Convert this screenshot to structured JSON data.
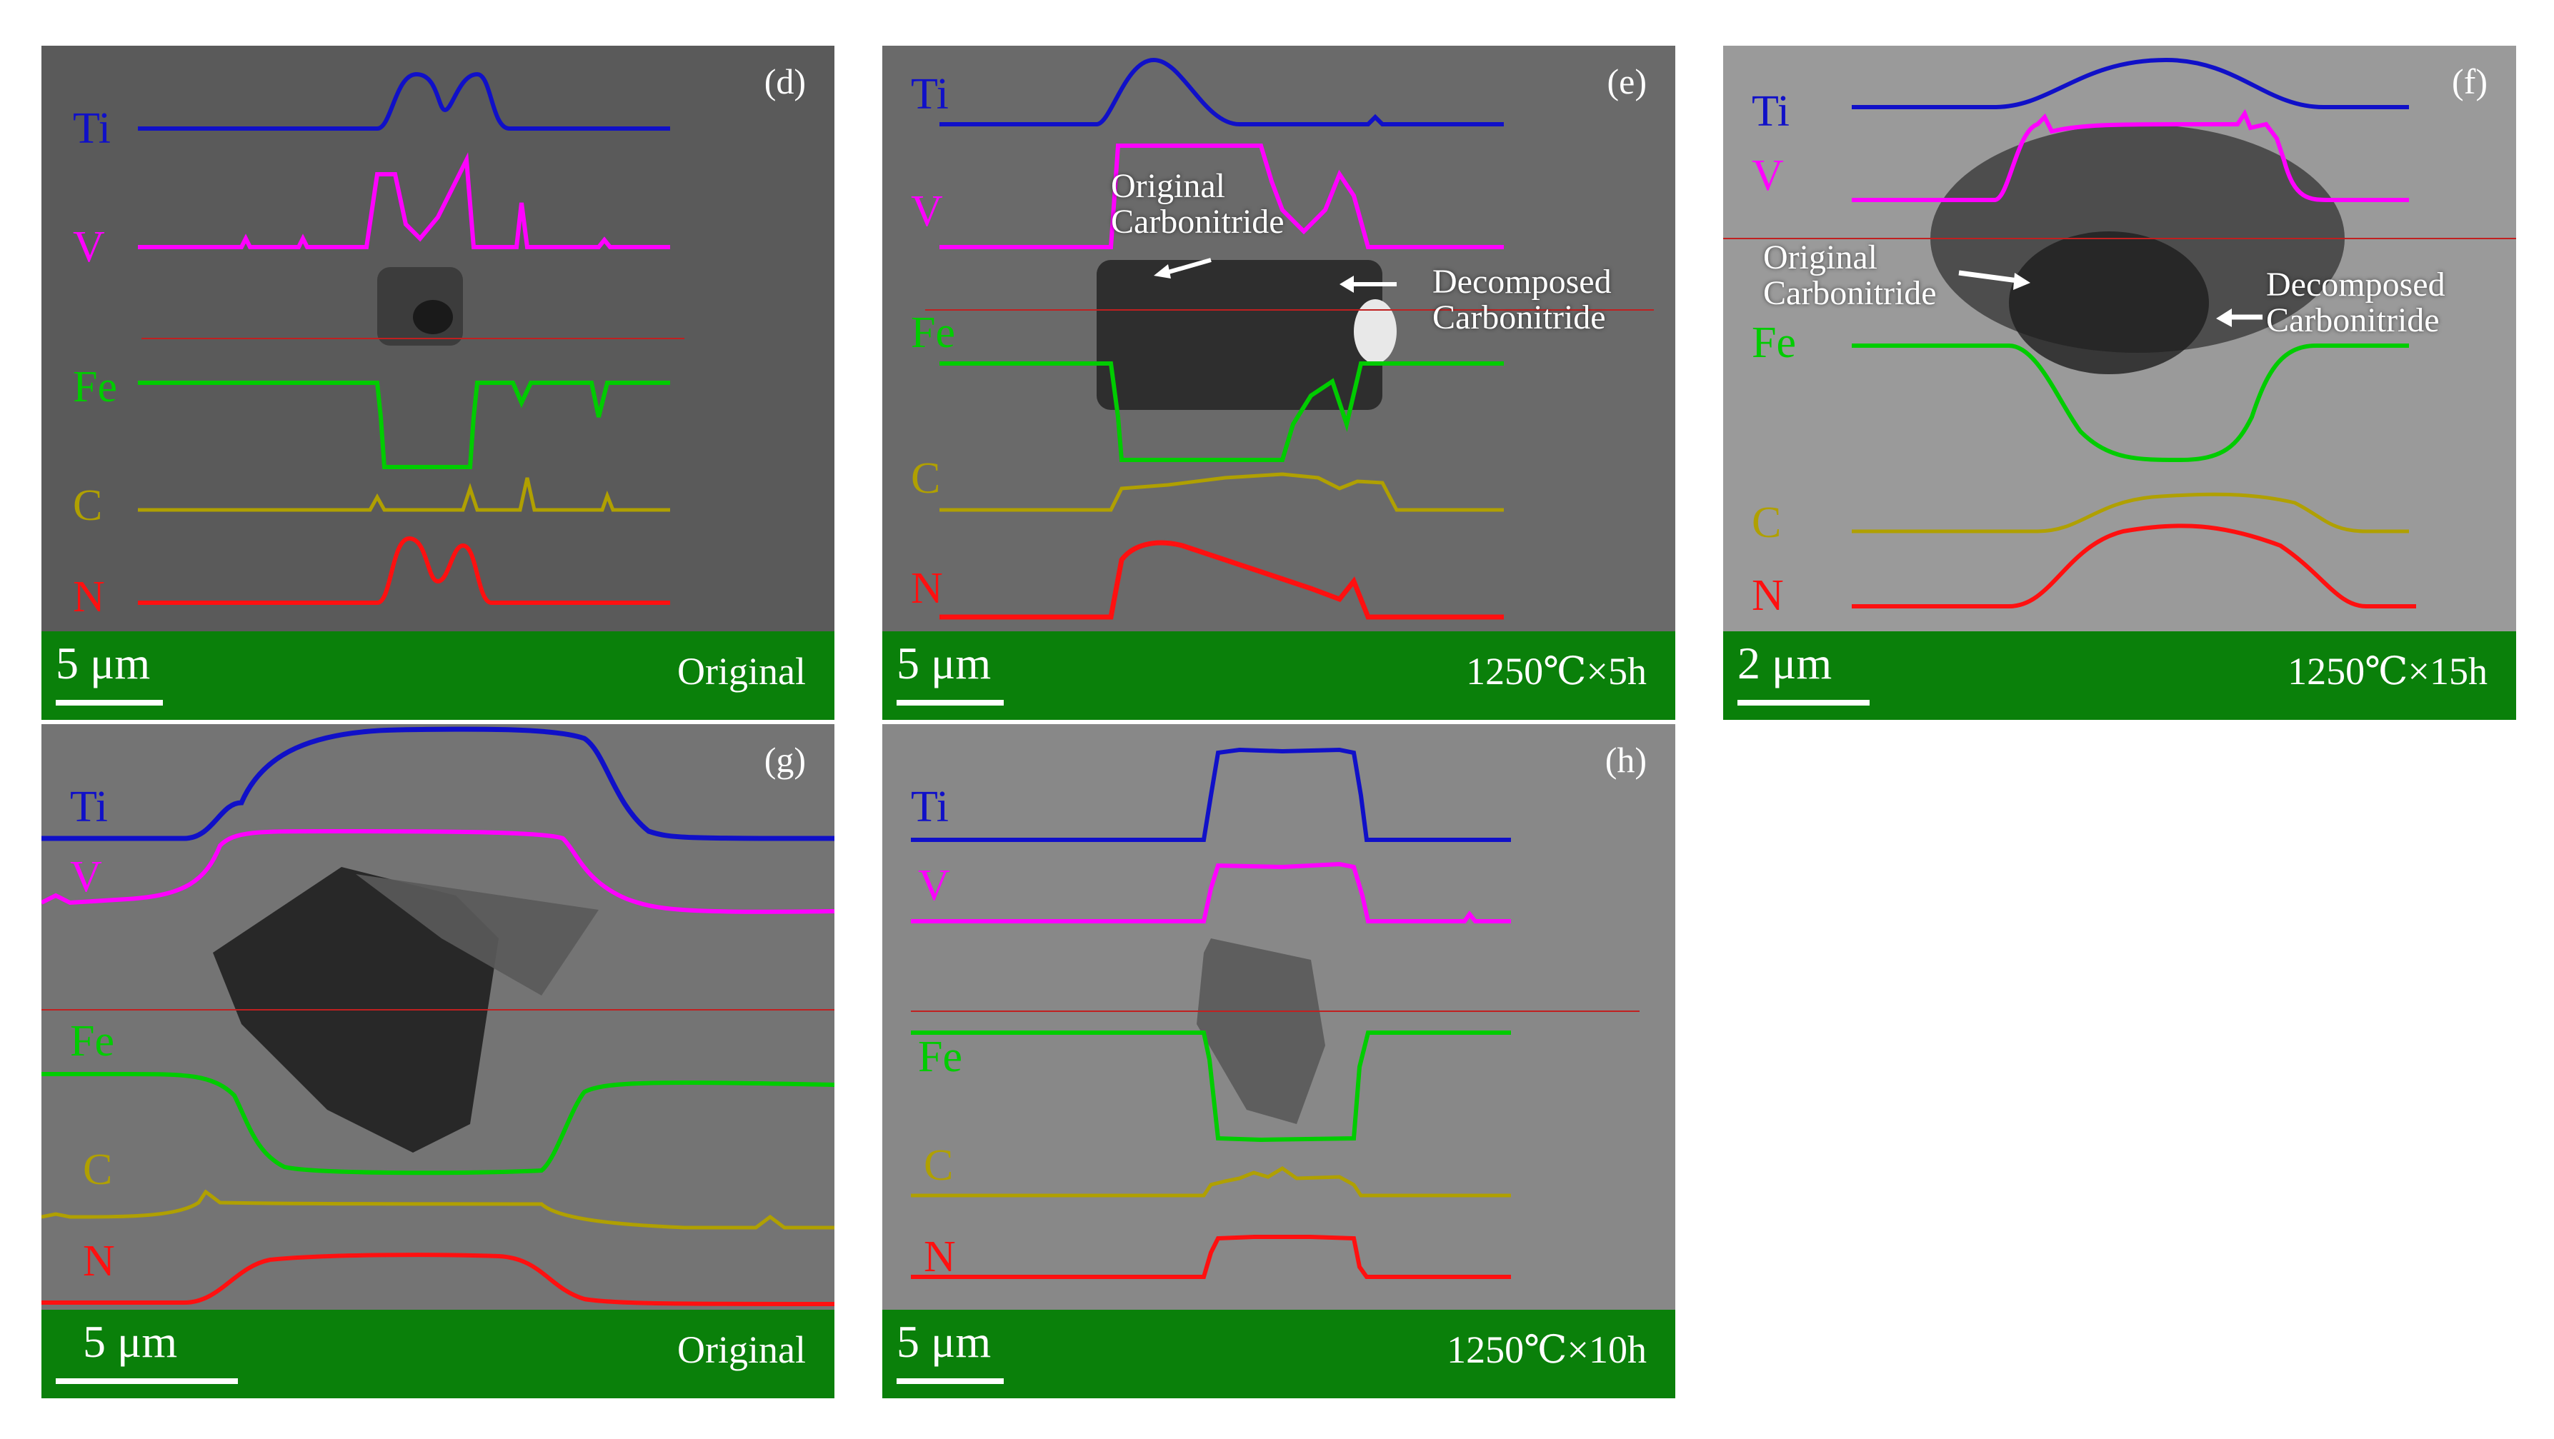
{
  "colors": {
    "Ti": "#1010c8",
    "V": "#ff00ff",
    "Fe": "#00cc00",
    "C": "#b0a000",
    "N": "#ff1010",
    "bar": "#0a800a"
  },
  "panels": {
    "d": {
      "tag": "(d)",
      "scale": "5 μm",
      "cond": "Original",
      "labels": {
        "Ti": "Ti",
        "V": "V",
        "Fe": "Fe",
        "C": "C",
        "N": "N"
      }
    },
    "e": {
      "tag": "(e)",
      "scale": "5 μm",
      "cond": "1250℃×5h",
      "labels": {
        "Ti": "Ti",
        "V": "V",
        "Fe": "Fe",
        "C": "C",
        "N": "N"
      },
      "ann_original": [
        "Original",
        "Carbonitride"
      ],
      "ann_decomposed": [
        "Decomposed",
        "Carbonitride"
      ]
    },
    "f": {
      "tag": "(f)",
      "scale": "2 μm",
      "cond": "1250℃×15h",
      "labels": {
        "Ti": "Ti",
        "V": "V",
        "Fe": "Fe",
        "C": "C",
        "N": "N"
      },
      "ann_original": [
        "Original",
        "Carbonitride"
      ],
      "ann_decomposed": [
        "Decomposed",
        "Carbonitride"
      ]
    },
    "g": {
      "tag": "(g)",
      "scale": "5 μm",
      "cond": "Original",
      "labels": {
        "Ti": "Ti",
        "V": "V",
        "Fe": "Fe",
        "C": "C",
        "N": "N"
      }
    },
    "h": {
      "tag": "(h)",
      "scale": "5 μm",
      "cond": "1250℃×10h",
      "labels": {
        "Ti": "Ti",
        "V": "V",
        "Fe": "Fe",
        "C": "C",
        "N": "N"
      }
    }
  }
}
